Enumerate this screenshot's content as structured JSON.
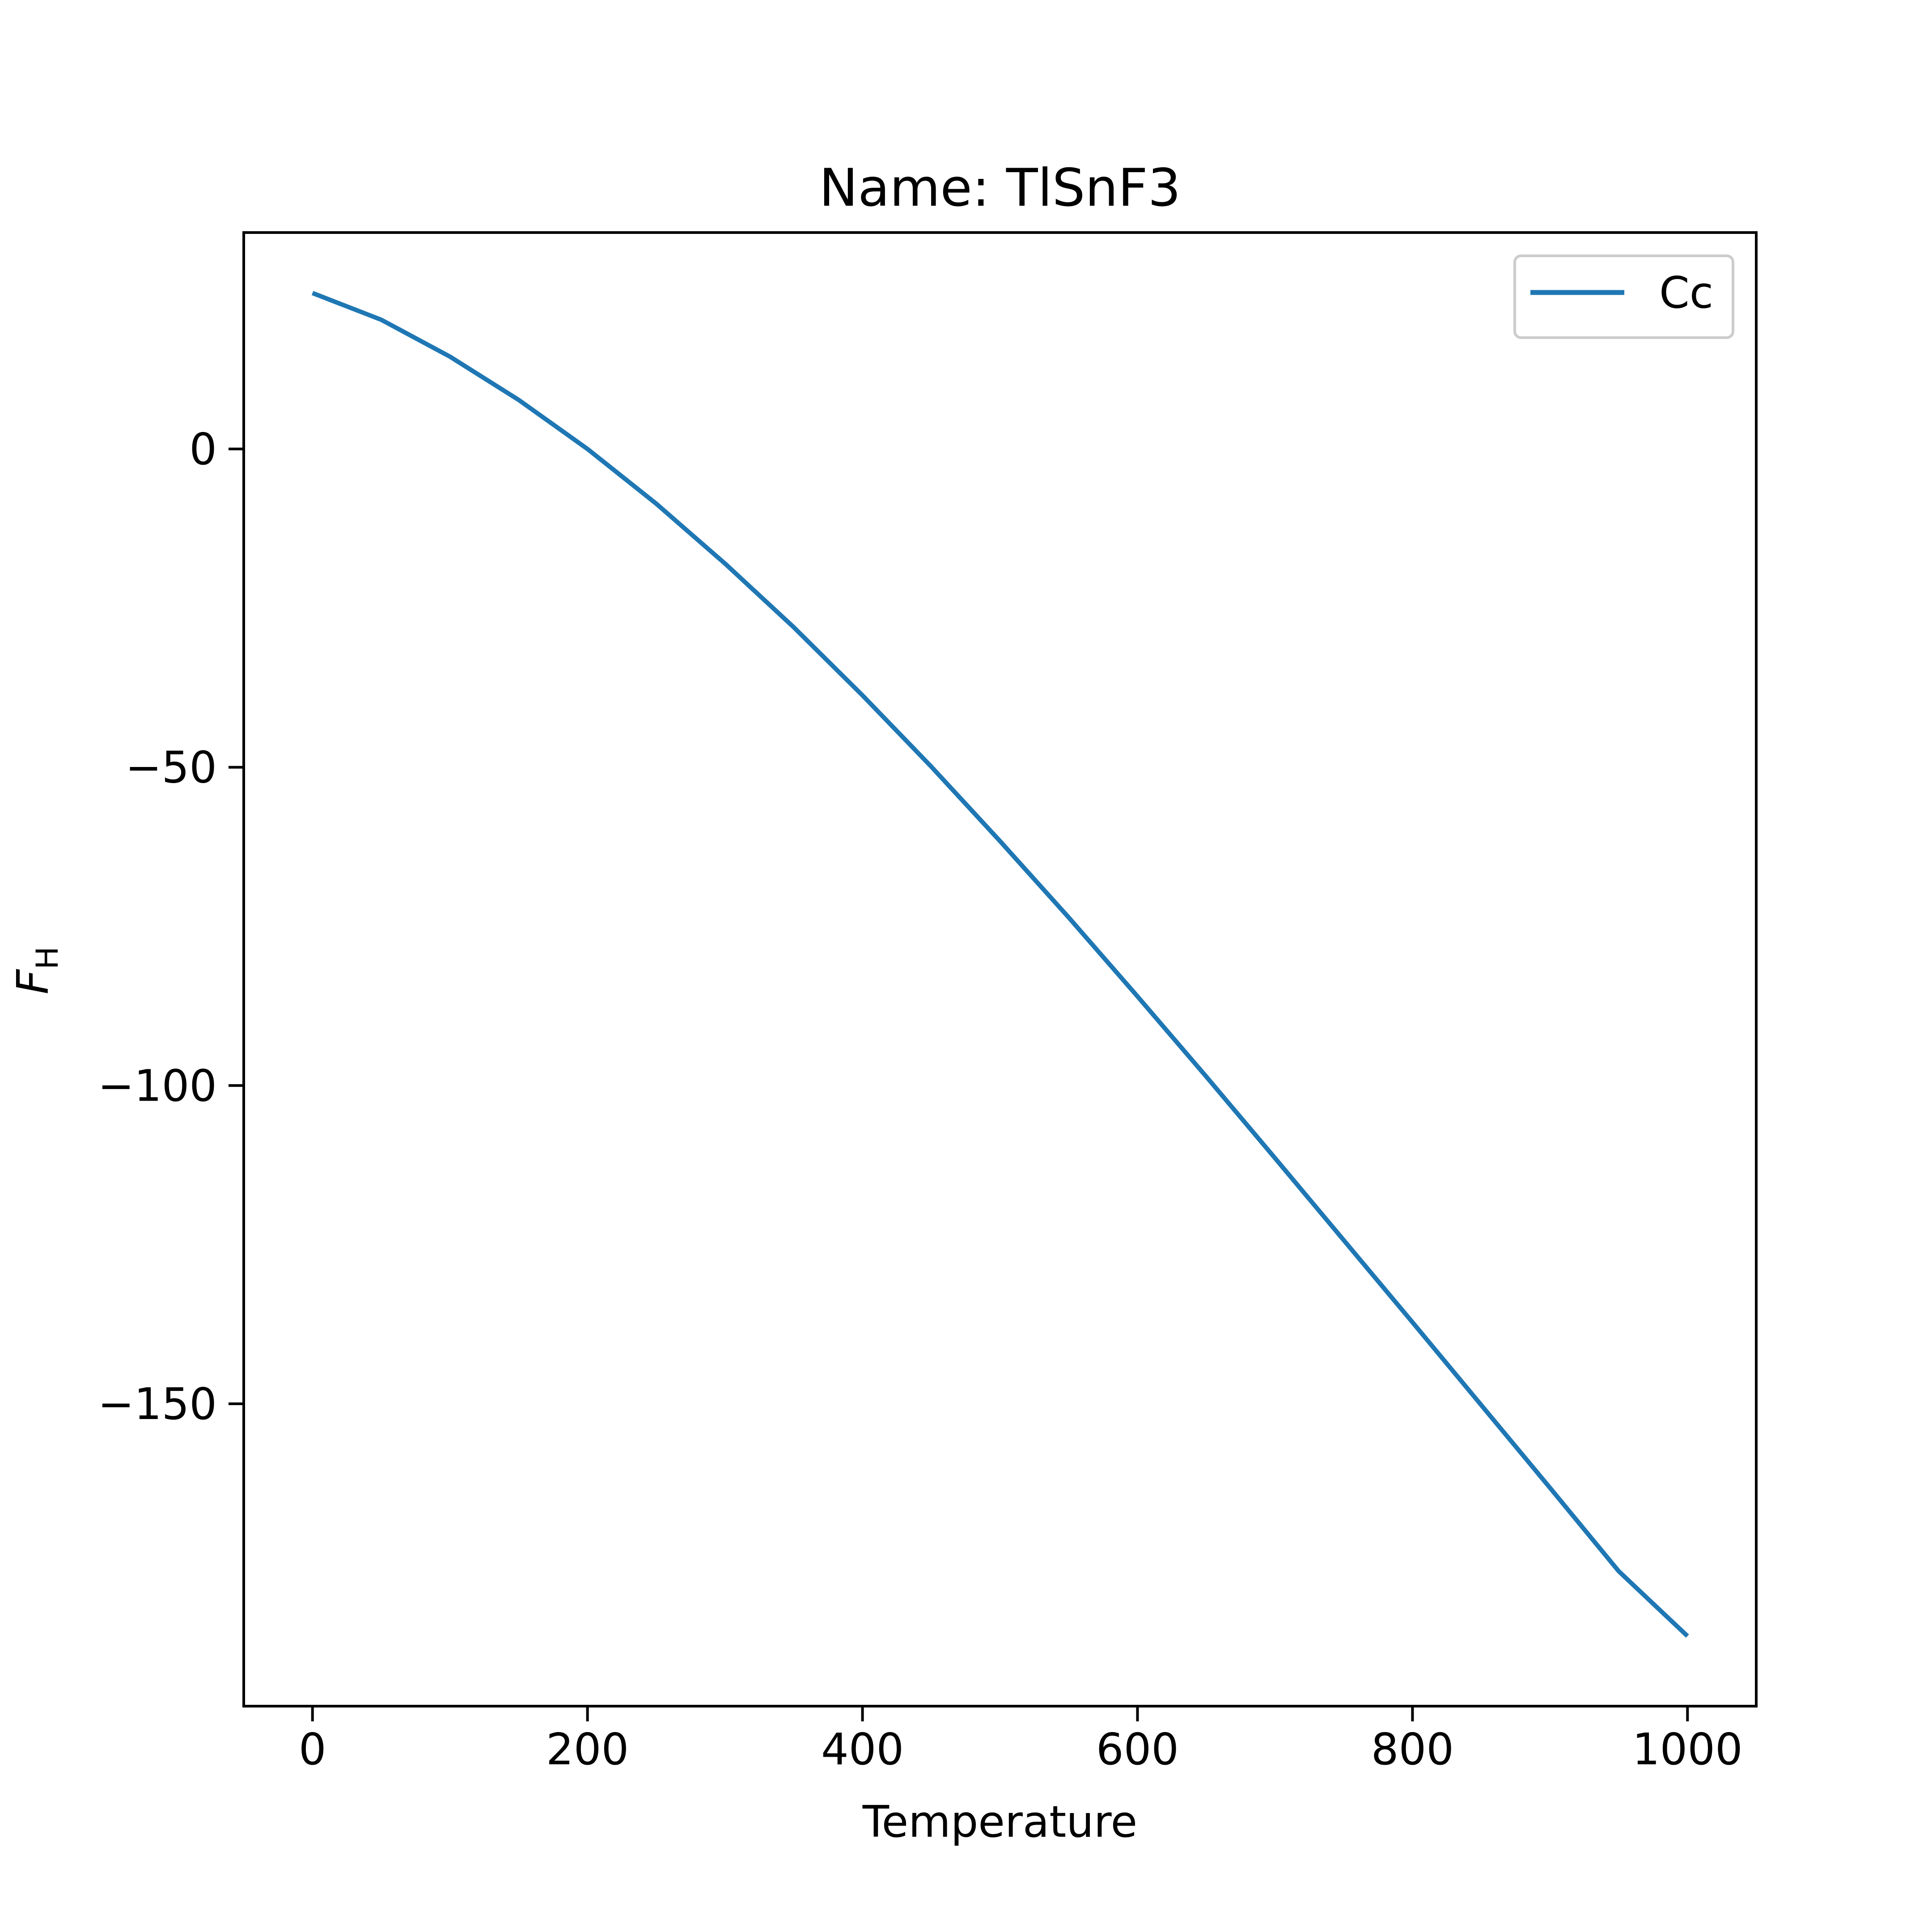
{
  "chart_data": {
    "type": "line",
    "title": "Name: TlSnF3",
    "xlabel": "Temperature",
    "ylabel_main": "F",
    "ylabel_sub": "H",
    "xlim": [
      -50,
      1050
    ],
    "ylim": [
      -197.5,
      34
    ],
    "xticks": [
      0,
      200,
      400,
      600,
      800,
      1000
    ],
    "xtick_labels": [
      "0",
      "200",
      "400",
      "600",
      "800",
      "1000"
    ],
    "yticks": [
      0,
      -50,
      -100,
      -150
    ],
    "ytick_labels": [
      "0",
      "−50",
      "−100",
      "−150"
    ],
    "grid": false,
    "legend_position": "upper right",
    "series": [
      {
        "name": "Cc",
        "color": "#1f77b4",
        "x": [
          0,
          50,
          100,
          150,
          200,
          250,
          300,
          350,
          400,
          450,
          500,
          550,
          600,
          650,
          700,
          750,
          800,
          850,
          900,
          950,
          1000
        ],
        "y": [
          24.5,
          20.3,
          14.5,
          7.7,
          0.0,
          -8.6,
          -18.0,
          -28.0,
          -38.7,
          -49.9,
          -61.6,
          -73.6,
          -86.0,
          -98.6,
          -111.4,
          -124.3,
          -137.2,
          -150.2,
          -163.2,
          -176.3,
          -186.5
        ]
      }
    ]
  }
}
